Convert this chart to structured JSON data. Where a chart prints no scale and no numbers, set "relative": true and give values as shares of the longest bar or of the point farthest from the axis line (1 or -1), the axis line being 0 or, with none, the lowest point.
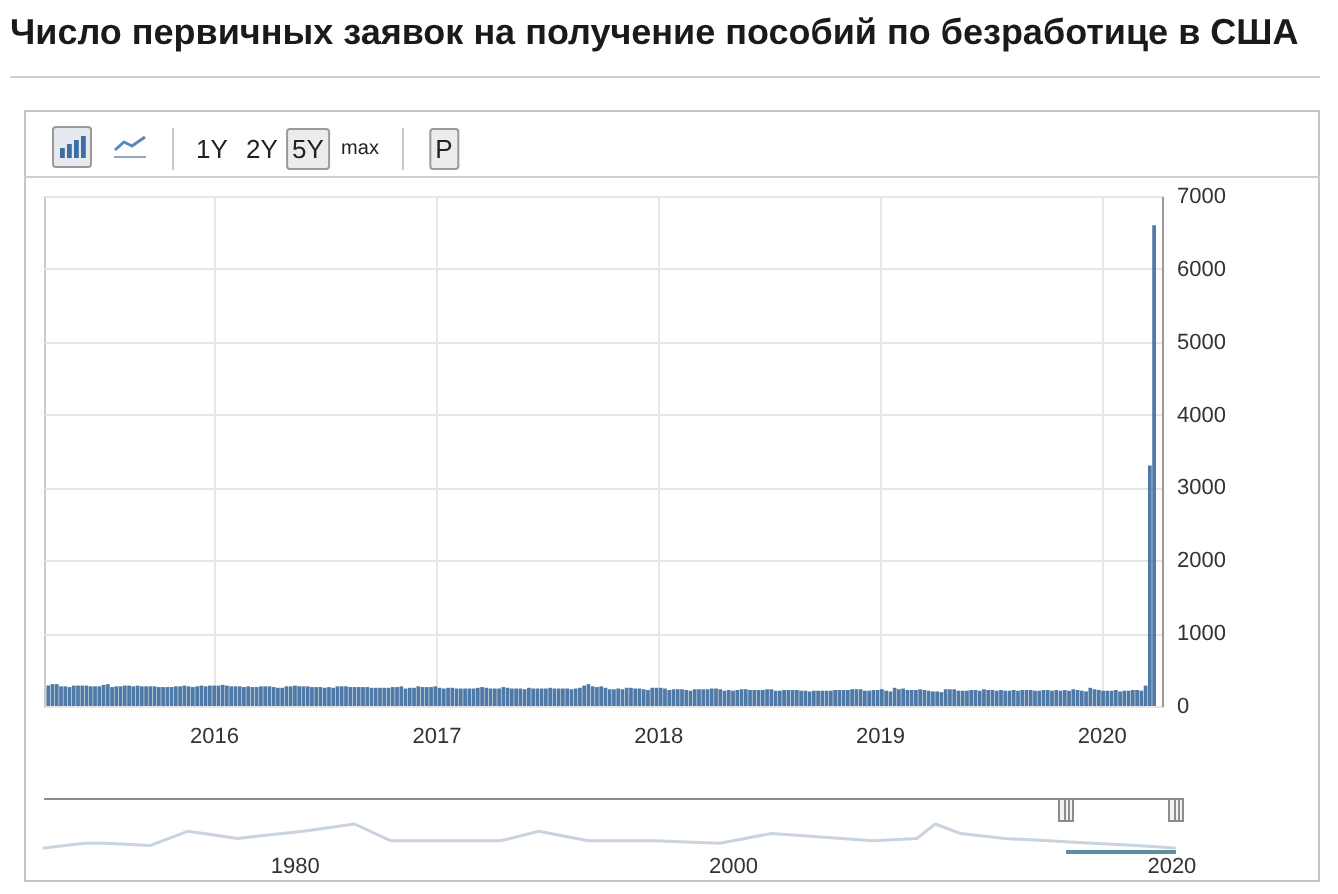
{
  "chart_data": [
    {
      "type": "bar",
      "title": "Число первичных заявок на получение пособий по безработице в США",
      "annotations": [
        "1Y",
        "2Y",
        "5Y",
        "max",
        "P"
      ],
      "x": [
        "2015-04-04",
        "2015-04-11",
        "2015-04-18",
        "2015-04-25",
        "2015-05-02",
        "2015-05-09",
        "2015-05-16",
        "2015-05-23",
        "2015-05-30",
        "2015-06-06",
        "2015-06-13",
        "2015-06-20",
        "2015-06-27",
        "2015-07-04",
        "2015-07-11",
        "2015-07-18",
        "2015-07-25",
        "2015-08-01",
        "2015-08-08",
        "2015-08-15",
        "2015-08-22",
        "2015-08-29",
        "2015-09-05",
        "2015-09-12",
        "2015-09-19",
        "2015-09-26",
        "2015-10-03",
        "2015-10-10",
        "2015-10-17",
        "2015-10-24",
        "2015-10-31",
        "2015-11-07",
        "2015-11-14",
        "2015-11-21",
        "2015-11-28",
        "2015-12-05",
        "2015-12-12",
        "2015-12-19",
        "2015-12-26",
        "2016-01-02",
        "2016-01-09",
        "2016-01-16",
        "2016-01-23",
        "2016-01-30",
        "2016-02-06",
        "2016-02-13",
        "2016-02-20",
        "2016-02-27",
        "2016-03-05",
        "2016-03-12",
        "2016-03-19",
        "2016-03-26",
        "2016-04-02",
        "2016-04-09",
        "2016-04-16",
        "2016-04-23",
        "2016-04-30",
        "2016-05-07",
        "2016-05-14",
        "2016-05-21",
        "2016-05-28",
        "2016-06-04",
        "2016-06-11",
        "2016-06-18",
        "2016-06-25",
        "2016-07-02",
        "2016-07-09",
        "2016-07-16",
        "2016-07-23",
        "2016-07-30",
        "2016-08-06",
        "2016-08-13",
        "2016-08-20",
        "2016-08-27",
        "2016-09-03",
        "2016-09-10",
        "2016-09-17",
        "2016-09-24",
        "2016-10-01",
        "2016-10-08",
        "2016-10-15",
        "2016-10-22",
        "2016-10-29",
        "2016-11-05",
        "2016-11-12",
        "2016-11-19",
        "2016-11-26",
        "2016-12-03",
        "2016-12-10",
        "2016-12-17",
        "2016-12-24",
        "2016-12-31",
        "2017-01-07",
        "2017-01-14",
        "2017-01-21",
        "2017-01-28",
        "2017-02-04",
        "2017-02-11",
        "2017-02-18",
        "2017-02-25",
        "2017-03-04",
        "2017-03-11",
        "2017-03-18",
        "2017-03-25",
        "2017-04-01",
        "2017-04-08",
        "2017-04-15",
        "2017-04-22",
        "2017-04-29",
        "2017-05-06",
        "2017-05-13",
        "2017-05-20",
        "2017-05-27",
        "2017-06-03",
        "2017-06-10",
        "2017-06-17",
        "2017-06-24",
        "2017-07-01",
        "2017-07-08",
        "2017-07-15",
        "2017-07-22",
        "2017-07-29",
        "2017-08-05",
        "2017-08-12",
        "2017-08-19",
        "2017-08-26",
        "2017-09-02",
        "2017-09-09",
        "2017-09-16",
        "2017-09-23",
        "2017-09-30",
        "2017-10-07",
        "2017-10-14",
        "2017-10-21",
        "2017-10-28",
        "2017-11-04",
        "2017-11-11",
        "2017-11-18",
        "2017-11-25",
        "2017-12-02",
        "2017-12-09",
        "2017-12-16",
        "2017-12-23",
        "2017-12-30",
        "2018-01-06",
        "2018-01-13",
        "2018-01-20",
        "2018-01-27",
        "2018-02-03",
        "2018-02-10",
        "2018-02-17",
        "2018-02-24",
        "2018-03-03",
        "2018-03-10",
        "2018-03-17",
        "2018-03-24",
        "2018-03-31",
        "2018-04-07",
        "2018-04-14",
        "2018-04-21",
        "2018-04-28",
        "2018-05-05",
        "2018-05-12",
        "2018-05-19",
        "2018-05-26",
        "2018-06-02",
        "2018-06-09",
        "2018-06-16",
        "2018-06-23",
        "2018-06-30",
        "2018-07-07",
        "2018-07-14",
        "2018-07-21",
        "2018-07-28",
        "2018-08-04",
        "2018-08-11",
        "2018-08-18",
        "2018-08-25",
        "2018-09-01",
        "2018-09-08",
        "2018-09-15",
        "2018-09-22",
        "2018-09-29",
        "2018-10-06",
        "2018-10-13",
        "2018-10-20",
        "2018-10-27",
        "2018-11-03",
        "2018-11-10",
        "2018-11-17",
        "2018-11-24",
        "2018-12-01",
        "2018-12-08",
        "2018-12-15",
        "2018-12-22",
        "2018-12-29",
        "2019-01-05",
        "2019-01-12",
        "2019-01-19",
        "2019-01-26",
        "2019-02-02",
        "2019-02-09",
        "2019-02-16",
        "2019-02-23",
        "2019-03-02",
        "2019-03-09",
        "2019-03-16",
        "2019-03-23",
        "2019-03-30",
        "2019-04-06",
        "2019-04-13",
        "2019-04-20",
        "2019-04-27",
        "2019-05-04",
        "2019-05-11",
        "2019-05-18",
        "2019-05-25",
        "2019-06-01",
        "2019-06-08",
        "2019-06-15",
        "2019-06-22",
        "2019-06-29",
        "2019-07-06",
        "2019-07-13",
        "2019-07-20",
        "2019-07-27",
        "2019-08-03",
        "2019-08-10",
        "2019-08-17",
        "2019-08-24",
        "2019-08-31",
        "2019-09-07",
        "2019-09-14",
        "2019-09-21",
        "2019-09-28",
        "2019-10-05",
        "2019-10-12",
        "2019-10-19",
        "2019-10-26",
        "2019-11-02",
        "2019-11-09",
        "2019-11-16",
        "2019-11-23",
        "2019-11-30",
        "2019-12-07",
        "2019-12-14",
        "2019-12-21",
        "2019-12-28",
        "2020-01-04",
        "2020-01-11",
        "2020-01-18",
        "2020-01-25",
        "2020-02-01",
        "2020-02-08",
        "2020-02-15",
        "2020-02-22",
        "2020-02-29",
        "2020-03-07",
        "2020-03-14",
        "2020-03-21",
        "2020-03-28"
      ],
      "values": [
        280,
        300,
        300,
        270,
        270,
        260,
        280,
        280,
        280,
        280,
        270,
        270,
        270,
        290,
        300,
        260,
        270,
        270,
        280,
        280,
        270,
        280,
        270,
        270,
        270,
        270,
        260,
        260,
        260,
        260,
        270,
        270,
        280,
        270,
        260,
        270,
        280,
        270,
        280,
        280,
        280,
        290,
        280,
        270,
        270,
        270,
        260,
        270,
        260,
        260,
        270,
        270,
        270,
        260,
        250,
        250,
        270,
        270,
        280,
        270,
        270,
        270,
        260,
        260,
        260,
        250,
        260,
        250,
        270,
        270,
        270,
        260,
        260,
        260,
        260,
        260,
        250,
        250,
        250,
        250,
        250,
        260,
        260,
        270,
        240,
        250,
        250,
        270,
        260,
        260,
        260,
        270,
        250,
        240,
        250,
        250,
        240,
        240,
        240,
        240,
        240,
        250,
        260,
        250,
        240,
        240,
        240,
        260,
        250,
        240,
        240,
        240,
        230,
        250,
        240,
        240,
        240,
        240,
        250,
        240,
        240,
        240,
        240,
        230,
        240,
        250,
        280,
        300,
        270,
        260,
        270,
        250,
        230,
        230,
        240,
        230,
        250,
        250,
        240,
        240,
        230,
        220,
        250,
        250,
        250,
        240,
        220,
        230,
        230,
        230,
        220,
        210,
        230,
        230,
        230,
        230,
        240,
        240,
        230,
        210,
        220,
        210,
        220,
        230,
        230,
        220,
        220,
        220,
        220,
        230,
        230,
        210,
        210,
        220,
        220,
        220,
        220,
        210,
        210,
        200,
        210,
        210,
        210,
        210,
        210,
        220,
        220,
        220,
        220,
        230,
        230,
        230,
        210,
        210,
        220,
        220,
        230,
        210,
        200,
        250,
        230,
        240,
        220,
        220,
        220,
        230,
        220,
        210,
        200,
        200,
        190,
        230,
        230,
        230,
        210,
        210,
        210,
        220,
        220,
        210,
        230,
        220,
        220,
        210,
        220,
        210,
        210,
        220,
        210,
        220,
        220,
        220,
        210,
        210,
        220,
        220,
        210,
        220,
        210,
        220,
        210,
        230,
        220,
        210,
        200,
        250,
        230,
        220,
        210,
        210,
        210,
        220,
        200,
        210,
        210,
        220,
        220,
        210,
        280,
        3300,
        6600
      ],
      "color": "#4f7aa8",
      "xlim": [
        "2015-03-28",
        "2020-04-10"
      ],
      "xticks": [
        "2016",
        "2017",
        "2018",
        "2019",
        "2020"
      ],
      "ylim": [
        0,
        7000
      ],
      "yticks": [
        0,
        1000,
        2000,
        3000,
        4000,
        5000,
        6000,
        7000
      ],
      "grid": true
    },
    {
      "type": "line",
      "relative": true,
      "x": [
        "1968-08",
        "1970-06",
        "1971-06",
        "1973-06",
        "1975-03",
        "1977-06",
        "1980-06",
        "1982-10",
        "1984-06",
        "1987-06",
        "1989-06",
        "1991-03",
        "1993-06",
        "1996-06",
        "1999-06",
        "2001-10",
        "2003-06",
        "2006-06",
        "2008-06",
        "2009-04",
        "2010-06",
        "2012-06",
        "2014-06",
        "2016-06",
        "2018-06",
        "2020-03"
      ],
      "values": [
        0,
        0.2,
        0.2,
        0.1,
        0.7,
        0.4,
        0.7,
        1,
        0.3,
        0.3,
        0.3,
        0.7,
        0.3,
        0.3,
        0.2,
        0.6,
        0.5,
        0.3,
        0.4,
        1,
        0.6,
        0.4,
        0.3,
        0.2,
        0.1,
        0
      ],
      "color": "#c9d3dd",
      "xlim": [
        "1968-08-01",
        "2020-06-01"
      ],
      "xticks": [
        "1980",
        "2000",
        "2020"
      ],
      "tick_labels": "x"
    }
  ]
}
